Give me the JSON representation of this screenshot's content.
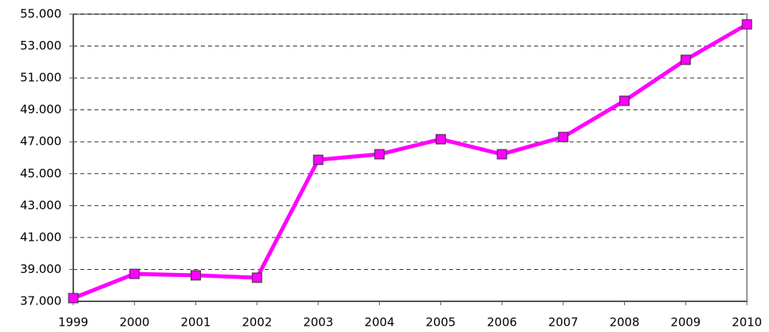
{
  "chart_data": {
    "type": "line",
    "x": [
      1999,
      2000,
      2001,
      2002,
      2003,
      2004,
      2005,
      2006,
      2007,
      2008,
      2009,
      2010
    ],
    "series": [
      {
        "color": "#ff00ff",
        "values": [
          37200,
          38720,
          38630,
          38480,
          45870,
          46220,
          47160,
          46220,
          47300,
          49570,
          52140,
          54360
        ]
      }
    ],
    "xlim": [
      1999,
      2010
    ],
    "xticks": [
      1999,
      2000,
      2001,
      2002,
      2003,
      2004,
      2005,
      2006,
      2007,
      2008,
      2009,
      2010
    ],
    "ylim": [
      37000,
      55000
    ],
    "yticks": [
      {
        "value": 37000,
        "label": "37.000"
      },
      {
        "value": 39000,
        "label": "39.000"
      },
      {
        "value": 41000,
        "label": "41.000"
      },
      {
        "value": 43000,
        "label": "43.000"
      },
      {
        "value": 45000,
        "label": "45.000"
      },
      {
        "value": 47000,
        "label": "47.000"
      },
      {
        "value": 49000,
        "label": "49.000"
      },
      {
        "value": 51000,
        "label": "51.000"
      },
      {
        "value": 53000,
        "label": "53.000"
      },
      {
        "value": 55000,
        "label": "55.000"
      }
    ],
    "grid": true
  }
}
